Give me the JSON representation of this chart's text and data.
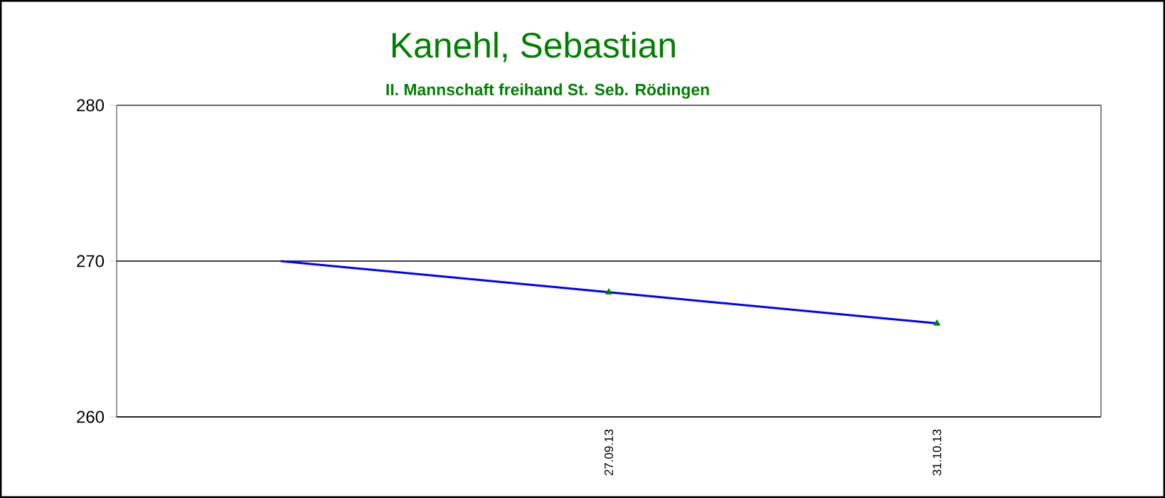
{
  "chart_data": {
    "type": "line",
    "title": "Kanehl, Sebastian",
    "subtitle": "II. Mannschaft freihand St. Seb. Rödingen",
    "categories": [
      null,
      "27.09.13",
      "31.10.13"
    ],
    "series": [
      {
        "color": "#0000ff",
        "marker": "none",
        "values": [
          270,
          268,
          266
        ]
      },
      {
        "type": "scatter",
        "color": "#008000",
        "marker": "triangle",
        "values": [
          null,
          268,
          266
        ]
      }
    ],
    "ylim": [
      260,
      280
    ],
    "yticks": [
      260,
      270,
      280
    ],
    "grid": "y"
  }
}
